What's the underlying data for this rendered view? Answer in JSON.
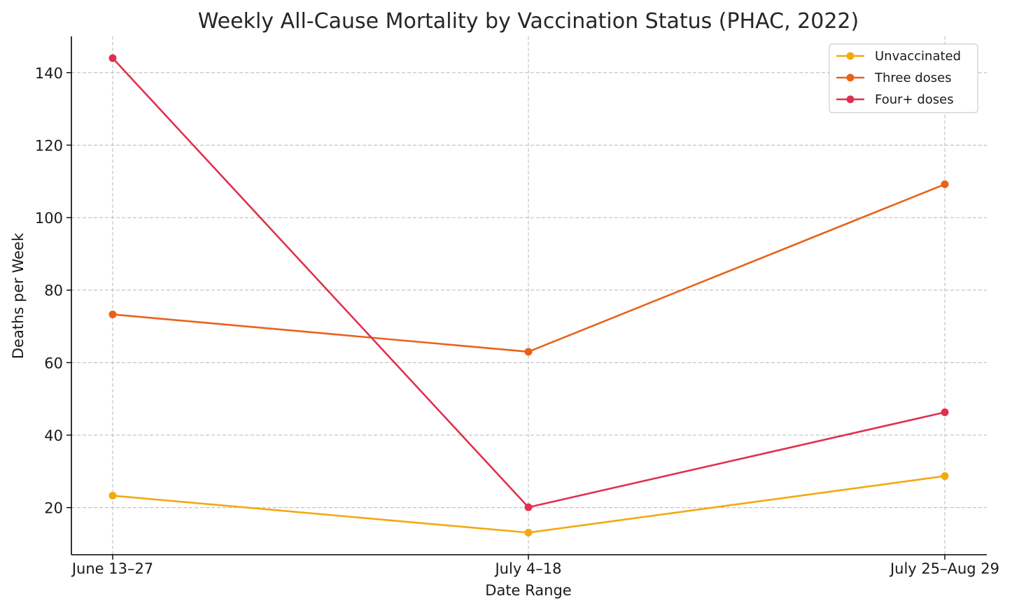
{
  "chart_data": {
    "type": "line",
    "title": "Weekly All-Cause Mortality by Vaccination Status (PHAC, 2022)",
    "xlabel": "Date Range",
    "ylabel": "Deaths per Week",
    "categories": [
      "June 13–27",
      "July 4–18",
      "July 25–Aug 29"
    ],
    "ylim": [
      7,
      150
    ],
    "yticks": [
      20,
      40,
      60,
      80,
      100,
      120,
      140
    ],
    "grid": true,
    "legend_position": "top-right",
    "series": [
      {
        "name": "Unvaccinated",
        "color": "#f2a90f",
        "values": [
          23.3,
          13.1,
          28.7
        ]
      },
      {
        "name": "Three doses",
        "color": "#e8621c",
        "values": [
          73.3,
          63.0,
          109.2
        ]
      },
      {
        "name": "Four+ doses",
        "color": "#e0304e",
        "values": [
          144.0,
          20.1,
          46.3
        ]
      }
    ]
  }
}
